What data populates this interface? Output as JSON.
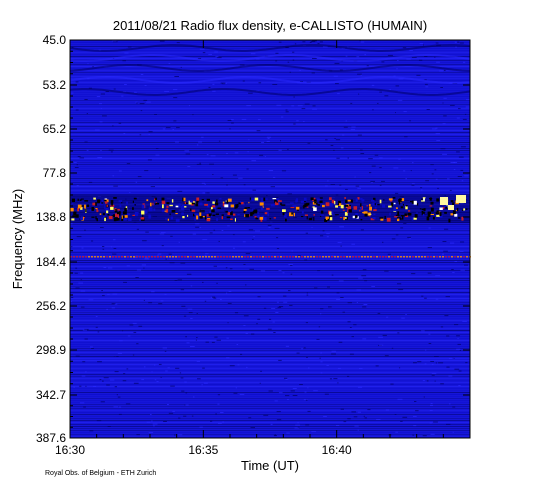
{
  "chart_data": {
    "type": "heatmap",
    "title": "2011/08/21  Radio flux density, e-CALLISTO (HUMAIN)",
    "xlabel": "Time (UT)",
    "ylabel": "Frequency (MHz)",
    "x_ticks": [
      "16:30",
      "16:35",
      "16:40"
    ],
    "x_tick_minutes": [
      0,
      5,
      10
    ],
    "x_range_minutes": [
      0,
      15
    ],
    "y_ticks": [
      "45.0",
      "53.2",
      "65.2",
      "77.8",
      "138.8",
      "184.4",
      "256.2",
      "298.9",
      "342.7",
      "387.6"
    ],
    "colormap": [
      "#000066",
      "#0a0ac8",
      "#2a2aff",
      "#c81e28",
      "#ff8c00",
      "#ffff60",
      "#ffffff"
    ],
    "bright_band": {
      "frequency_label": "138.8"
    },
    "emission_line": {
      "frequency_label": "184.4"
    }
  },
  "footer": {
    "credit": "Royal Obs. of Belgium - ETH Zurich"
  }
}
